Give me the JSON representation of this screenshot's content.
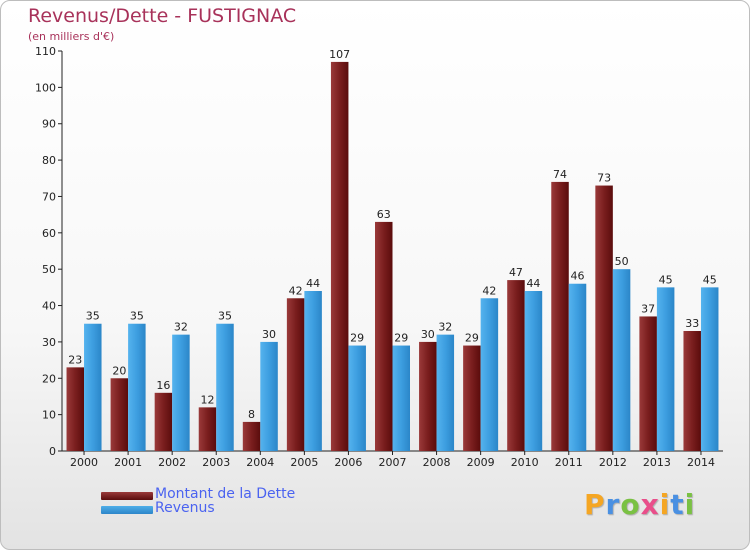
{
  "header": {
    "title": "Revenus/Dette - FUSTIGNAC",
    "subtitle": "(en milliers d'€)"
  },
  "chart_data": {
    "type": "bar",
    "title": "Revenus/Dette - FUSTIGNAC",
    "subtitle": "(en milliers d'€)",
    "xlabel": "",
    "ylabel": "",
    "ylim": [
      0,
      110
    ],
    "yticks": [
      0,
      10,
      20,
      30,
      40,
      50,
      60,
      70,
      80,
      90,
      100,
      110
    ],
    "grid": false,
    "categories": [
      "2000",
      "2001",
      "2002",
      "2003",
      "2004",
      "2005",
      "2006",
      "2007",
      "2008",
      "2009",
      "2010",
      "2011",
      "2012",
      "2013",
      "2014"
    ],
    "series": [
      {
        "name": "Montant de la Dette",
        "color": "#7a1a1a",
        "values": [
          23,
          20,
          16,
          12,
          8,
          42,
          107,
          63,
          30,
          29,
          47,
          74,
          73,
          37,
          33
        ]
      },
      {
        "name": "Revenus",
        "color": "#3d9ee0",
        "values": [
          35,
          35,
          32,
          35,
          30,
          44,
          29,
          29,
          32,
          42,
          44,
          46,
          50,
          45,
          45
        ]
      }
    ],
    "legend_position": "bottom-left"
  },
  "legend": {
    "items": [
      {
        "label": "Montant de la Dette",
        "color": "#7a1a1a"
      },
      {
        "label": "Revenus",
        "color": "#3d9ee0"
      }
    ]
  },
  "brand": {
    "letters": [
      "P",
      "r",
      "o",
      "x",
      "i",
      "t",
      "i"
    ],
    "colors": [
      "#f5a623",
      "#4a90e2",
      "#7ac143",
      "#e94e8a",
      "#f5a623",
      "#4a90e2",
      "#7ac143"
    ]
  }
}
